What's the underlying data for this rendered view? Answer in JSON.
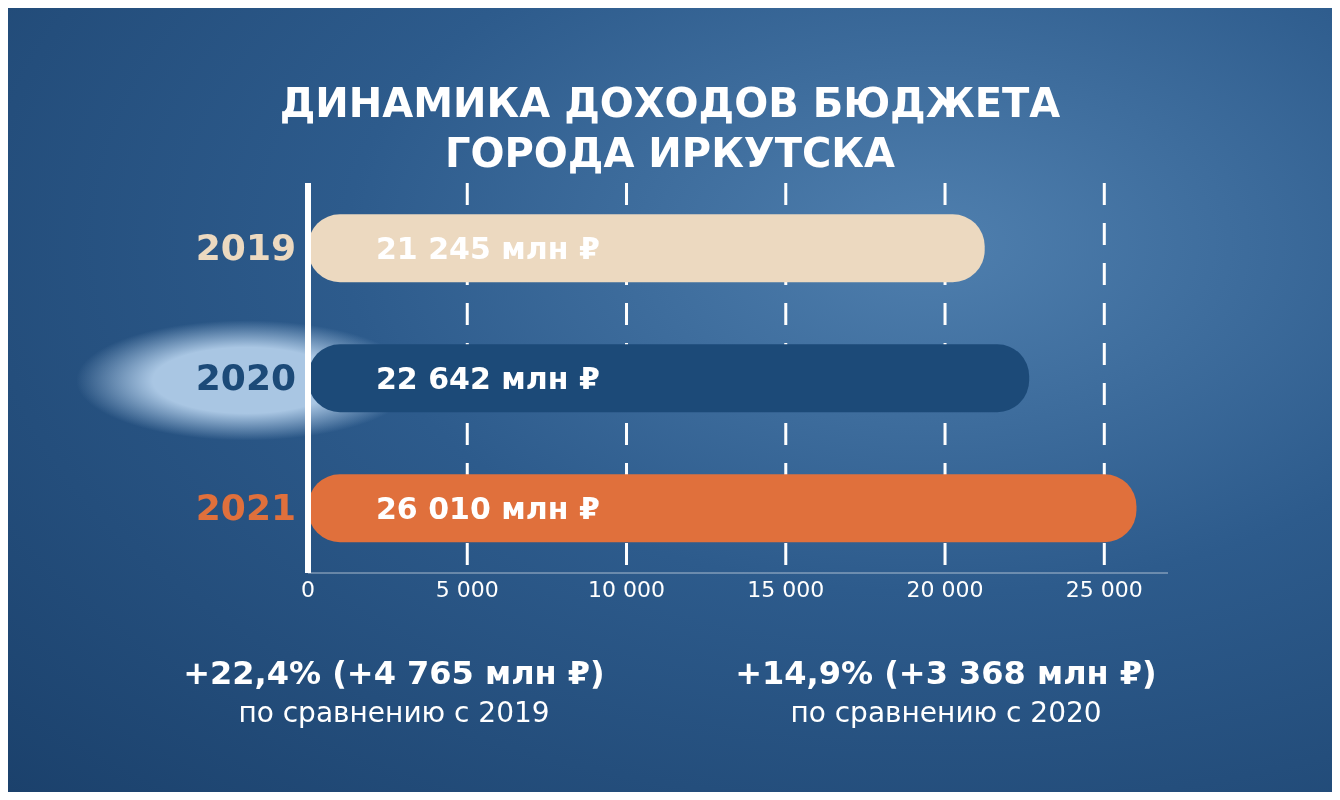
{
  "chart_data": {
    "type": "bar",
    "orientation": "horizontal",
    "title": "ДИНАМИКА ДОХОДОВ БЮДЖЕТА\nГОРОДА ИРКУТСКА",
    "categories": [
      "2019",
      "2020",
      "2021"
    ],
    "values": [
      21245,
      22642,
      26010
    ],
    "colors": [
      "#ecd9c0",
      "#1c4a78",
      "#e0703c"
    ],
    "value_labels": [
      "21 245 млн ₽",
      "22 642 млн ₽",
      "26 010 млн ₽"
    ],
    "xlim": [
      0,
      27000
    ],
    "xticks": [
      0,
      {
        "value": 5000,
        "label": "5 000"
      },
      {
        "value": 10000,
        "label": "10 000"
      },
      {
        "value": 15000,
        "label": "15 000"
      },
      {
        "value": 20000,
        "label": "20 000"
      },
      {
        "value": 25000,
        "label": "25 000"
      }
    ],
    "grid": "x",
    "annotations": [
      "+22,4% (+4 765 млн ₽)\nпо сравнению с 2019",
      "+14,9% (+3 368 млн ₽)\nпо сравнению с 2020"
    ]
  }
}
